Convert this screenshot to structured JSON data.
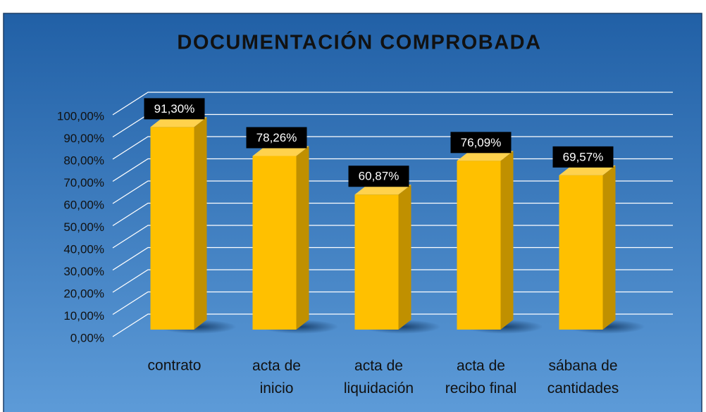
{
  "chart_data": {
    "type": "bar3d",
    "title": "DOCUMENTACIÓN COMPROBADA",
    "categories": [
      "contrato",
      "acta de inicio",
      "acta de liquidación",
      "acta de recibo final",
      "sábana de cantidades"
    ],
    "values": [
      91.3,
      78.26,
      60.87,
      76.09,
      69.57
    ],
    "value_labels": [
      "91,30%",
      "78,26%",
      "60,87%",
      "76,09%",
      "69,57%"
    ],
    "color": "#ffc000",
    "ylim": [
      0,
      100
    ],
    "yticks": [
      {
        "value": 0,
        "label": "0,00%"
      },
      {
        "value": 10,
        "label": "10,00%"
      },
      {
        "value": 20,
        "label": "20,00%"
      },
      {
        "value": 30,
        "label": "30,00%"
      },
      {
        "value": 40,
        "label": "40,00%"
      },
      {
        "value": 50,
        "label": "50,00%"
      },
      {
        "value": 60,
        "label": "60,00%"
      },
      {
        "value": 70,
        "label": "70,00%"
      },
      {
        "value": 80,
        "label": "80,00%"
      },
      {
        "value": 90,
        "label": "90,00%"
      },
      {
        "value": 100,
        "label": "100,00%"
      }
    ],
    "grid": true
  }
}
